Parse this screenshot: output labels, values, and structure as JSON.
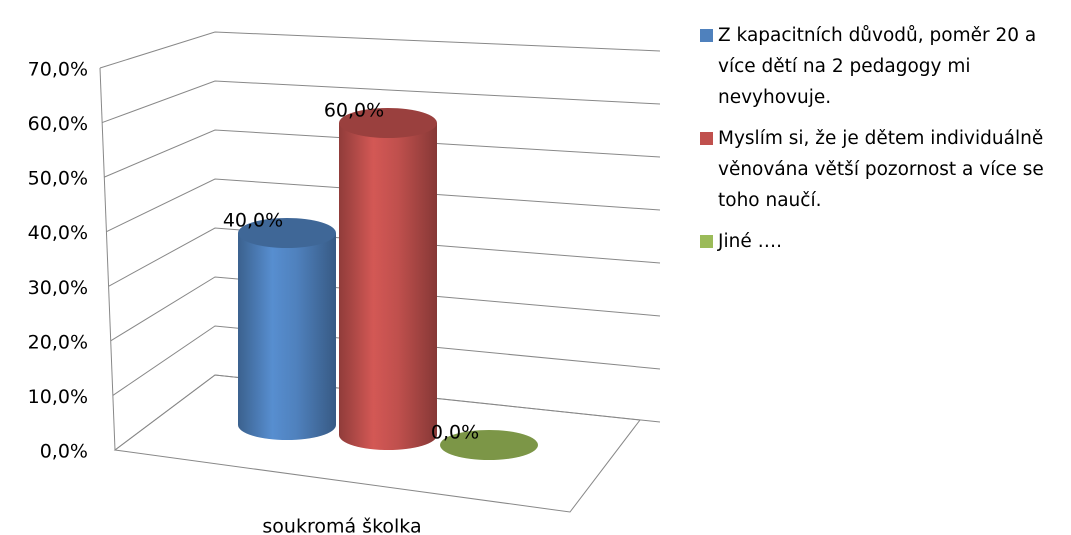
{
  "chart_data": {
    "type": "bar3d",
    "categories": [
      "soukromá školka"
    ],
    "series": [
      {
        "name": "Z kapacitních důvodů, poměr 20 a více dětí na 2 pedagogy mi nevyhovuje.",
        "color": "#4f81bd",
        "values": [
          40
        ],
        "value_labels": [
          "40,0%"
        ]
      },
      {
        "name": "Myslím si, že je dětem individuálně věnována větší pozornost a více se toho naučí.",
        "color": "#c0504d",
        "values": [
          60
        ],
        "value_labels": [
          "60,0%"
        ]
      },
      {
        "name": "Jiné ….",
        "color": "#9bbb59",
        "values": [
          0
        ],
        "value_labels": [
          "0,0%"
        ]
      }
    ],
    "ylim": [
      0,
      70
    ],
    "yticks": [
      {
        "value": 0,
        "label": "0,0%"
      },
      {
        "value": 10,
        "label": "10,0%"
      },
      {
        "value": 20,
        "label": "20,0%"
      },
      {
        "value": 30,
        "label": "30,0%"
      },
      {
        "value": 40,
        "label": "40,0%"
      },
      {
        "value": 50,
        "label": "50,0%"
      },
      {
        "value": 60,
        "label": "60,0%"
      },
      {
        "value": 70,
        "label": "70,0%"
      }
    ],
    "grid": true,
    "legend": "right"
  }
}
